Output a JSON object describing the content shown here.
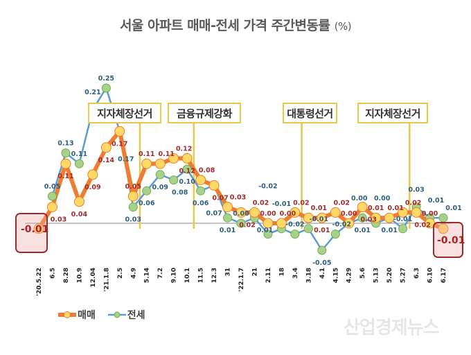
{
  "title": "서울 아파트 매매-전세 가격 주간변동률",
  "title_unit": "(%)",
  "annotations": [
    "지자체장선거",
    "금융규제강화",
    "대통령선거",
    "지자체장선거"
  ],
  "highlights": {
    "first": "-0.01",
    "last": "-0.01"
  },
  "legend": {
    "sale": "매매",
    "jeonse": "전세"
  },
  "watermark": "산업경제뉴스",
  "colors": {
    "sale_line": "#ed7d31",
    "sale_marker": "#ffd966",
    "jeonse_line": "#5b9bd5",
    "jeonse_marker": "#a9d18e",
    "sale_label": "#a52a2a",
    "jeonse_label": "#2e5f80",
    "event_line": "#e8c84a"
  },
  "chart_data": {
    "type": "line",
    "title": "서울 아파트 매매-전세 가격 주간변동률 (%)",
    "xlabel": "",
    "ylabel": "",
    "ylim": [
      -0.06,
      0.26
    ],
    "grid": false,
    "legend_position": "bottom-left",
    "categories": [
      "'20.5.22",
      "6.5",
      "8.28",
      "10.9",
      "12.04",
      "'21.1.8",
      "2.5",
      "4.9",
      "5.14",
      "7.2",
      "9.10",
      "10.1",
      "11.5",
      "12.3",
      "31",
      "'22.1.7",
      "21",
      "2.11",
      "18",
      "3.4",
      "3.18",
      "4.1",
      "4.15",
      "4.29",
      "5.6",
      "5.13",
      "5.20",
      "5.27",
      "6.3",
      "6.10",
      "6.17"
    ],
    "series": [
      {
        "name": "매매",
        "values": [
          -0.01,
          0.03,
          0.11,
          0.04,
          0.09,
          0.14,
          0.17,
          0.05,
          0.11,
          0.11,
          0.12,
          0.12,
          0.08,
          0.07,
          0.03,
          0.02,
          0.02,
          0.0,
          0.0,
          0.02,
          0.01,
          0.01,
          0.02,
          0.0,
          0.03,
          0.01,
          0.01,
          0.02,
          0.02,
          0.0,
          -0.01
        ]
      },
      {
        "name": "전세",
        "values": [
          null,
          0.05,
          0.13,
          0.11,
          0.21,
          0.25,
          0.17,
          0.03,
          0.06,
          0.09,
          0.08,
          0.1,
          0.06,
          0.07,
          0.01,
          0.0,
          0.01,
          -0.02,
          -0.01,
          -0.02,
          -0.01,
          -0.05,
          -0.02,
          0.0,
          0.01,
          0.0,
          0.01,
          -0.01,
          0.03,
          0.01,
          0.01
        ]
      }
    ],
    "event_markers": [
      {
        "label": "지자체장선거",
        "between": [
          "4.9",
          "5.14"
        ]
      },
      {
        "label": "금융규제강화",
        "between": [
          "10.1",
          "11.5"
        ]
      },
      {
        "label": "대통령선거",
        "between": [
          "3.4",
          "3.18"
        ]
      },
      {
        "label": "지자체장선거",
        "between": [
          "5.27",
          "6.3"
        ]
      }
    ]
  }
}
